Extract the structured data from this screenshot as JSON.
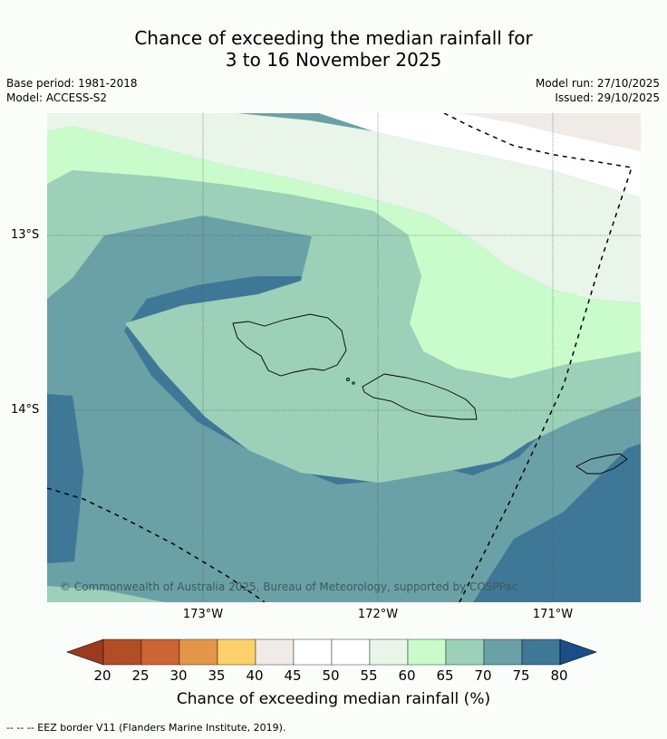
{
  "title_line1": "Chance of exceeding the median rainfall for",
  "title_line2": "3 to 16 November 2025",
  "base_period": "Base period: 1981-2018",
  "model": "Model: ACCESS-S2",
  "model_run": "Model run: 27/10/2025",
  "issued": "Issued: 29/10/2025",
  "lat_labels": [
    "13°S",
    "14°S"
  ],
  "lon_labels": [
    "173°W",
    "172°W",
    "171°W"
  ],
  "copyright": "© Commonwealth of Australia 2025, Bureau of Meteorology, supported by COSPPac",
  "colorbar": {
    "label": "Chance of exceeding median rainfall (%)",
    "ticks": [
      "20",
      "25",
      "30",
      "35",
      "40",
      "45",
      "50",
      "55",
      "60",
      "65",
      "70",
      "75",
      "80"
    ],
    "colors": [
      "#9c3a1f",
      "#b14d27",
      "#cd6433",
      "#e39648",
      "#fdd06c",
      "#f1ebe8",
      "#ffffff",
      "#ffffff",
      "#eaf5ea",
      "#cafbcb",
      "#9dd0b9",
      "#6aa1a6",
      "#3f7897",
      "#194f88"
    ]
  },
  "footnote": "--  --  -- EEZ border V11 (Flanders Marine Institute, 2019)."
}
